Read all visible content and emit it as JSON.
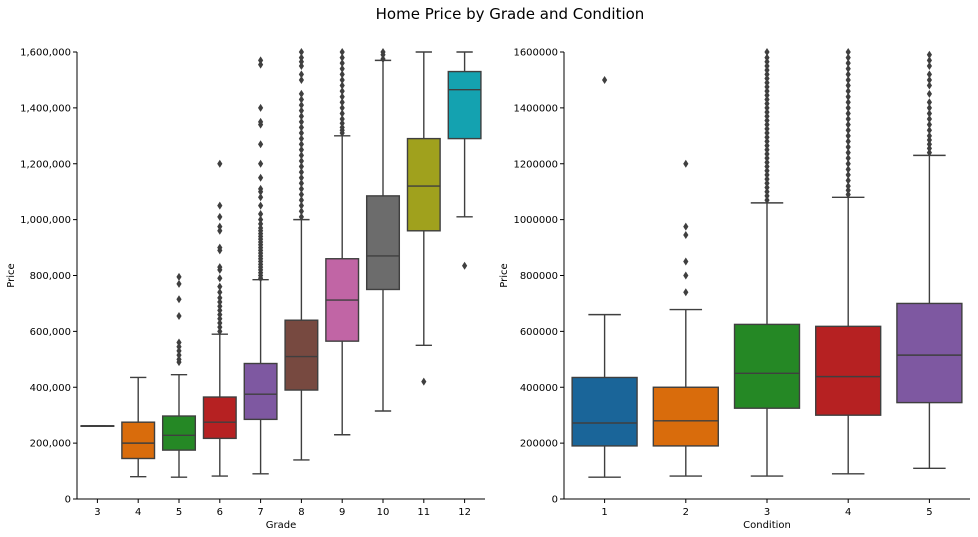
{
  "title": "Home Price by Grade and Condition",
  "chart_data": [
    {
      "type": "box",
      "xlabel": "Grade",
      "ylabel": "Price",
      "ylim": [
        0,
        1600000
      ],
      "y_ticks": [
        0,
        200000,
        400000,
        600000,
        800000,
        1000000,
        1200000,
        1400000,
        1600000
      ],
      "y_tick_labels": [
        "0",
        "200,000",
        "400,000",
        "600,000",
        "800,000",
        "1,000,000",
        "1,200,000",
        "1,400,000",
        "1,600,000"
      ],
      "grid": false,
      "categories": [
        "3",
        "4",
        "5",
        "6",
        "7",
        "8",
        "9",
        "10",
        "11",
        "12"
      ],
      "colors": [
        "#1f77b4",
        "#ff7f0e",
        "#2ca02c",
        "#d62728",
        "#9467bd",
        "#8c564b",
        "#e377c2",
        "#7f7f7f",
        "#bcbd22",
        "#17becf"
      ],
      "boxes": [
        {
          "category": "3",
          "whisker_low": 262000,
          "q1": 262000,
          "median": 262000,
          "q3": 262000,
          "whisker_high": 262000,
          "outliers": []
        },
        {
          "category": "4",
          "whisker_low": 80000,
          "q1": 145000,
          "median": 200000,
          "q3": 275000,
          "whisker_high": 435000,
          "outliers": []
        },
        {
          "category": "5",
          "whisker_low": 78000,
          "q1": 175000,
          "median": 228000,
          "q3": 297000,
          "whisker_high": 445000,
          "outliers": [
            490000,
            500000,
            515000,
            530000,
            545000,
            560000,
            655000,
            715000,
            770000,
            795000
          ]
        },
        {
          "category": "6",
          "whisker_low": 82000,
          "q1": 217000,
          "median": 275000,
          "q3": 365000,
          "whisker_high": 590000,
          "outliers": [
            600000,
            615000,
            630000,
            645000,
            660000,
            675000,
            690000,
            705000,
            720000,
            740000,
            760000,
            790000,
            820000,
            830000,
            890000,
            900000,
            960000,
            975000,
            1010000,
            1050000,
            1200000
          ]
        },
        {
          "category": "7",
          "whisker_low": 90000,
          "q1": 285000,
          "median": 375000,
          "q3": 485000,
          "whisker_high": 785000,
          "outliers": [
            790000,
            800000,
            810000,
            820000,
            830000,
            840000,
            850000,
            860000,
            870000,
            880000,
            890000,
            900000,
            910000,
            920000,
            930000,
            940000,
            950000,
            960000,
            970000,
            985000,
            1000000,
            1020000,
            1050000,
            1080000,
            1100000,
            1110000,
            1150000,
            1200000,
            1270000,
            1340000,
            1350000,
            1400000,
            1555000,
            1570000
          ]
        },
        {
          "category": "8",
          "whisker_low": 140000,
          "q1": 390000,
          "median": 510000,
          "q3": 640000,
          "whisker_high": 1000000,
          "outliers": [
            1010000,
            1030000,
            1050000,
            1070000,
            1090000,
            1110000,
            1130000,
            1150000,
            1170000,
            1190000,
            1210000,
            1230000,
            1250000,
            1270000,
            1290000,
            1310000,
            1330000,
            1350000,
            1370000,
            1390000,
            1410000,
            1430000,
            1450000,
            1500000,
            1520000,
            1550000,
            1565000,
            1580000,
            1600000
          ]
        },
        {
          "category": "9",
          "whisker_low": 230000,
          "q1": 565000,
          "median": 712000,
          "q3": 860000,
          "whisker_high": 1300000,
          "outliers": [
            1310000,
            1320000,
            1330000,
            1345000,
            1360000,
            1380000,
            1400000,
            1420000,
            1440000,
            1460000,
            1480000,
            1500000,
            1520000,
            1540000,
            1560000,
            1580000,
            1600000
          ]
        },
        {
          "category": "10",
          "whisker_low": 315000,
          "q1": 750000,
          "median": 870000,
          "q3": 1085000,
          "whisker_high": 1570000,
          "outliers": [
            1575000,
            1590000,
            1600000
          ]
        },
        {
          "category": "11",
          "whisker_low": 550000,
          "q1": 960000,
          "median": 1120000,
          "q3": 1290000,
          "whisker_high": 1600000,
          "outliers": [
            420000
          ]
        },
        {
          "category": "12",
          "whisker_low": 1010000,
          "q1": 1290000,
          "median": 1465000,
          "q3": 1530000,
          "whisker_high": 1600000,
          "outliers": [
            835000
          ]
        }
      ]
    },
    {
      "type": "box",
      "xlabel": "Condition",
      "ylabel": "Price",
      "ylim": [
        0,
        1600000
      ],
      "y_ticks": [
        0,
        200000,
        400000,
        600000,
        800000,
        1000000,
        1200000,
        1400000,
        1600000
      ],
      "y_tick_labels": [
        "0",
        "200000",
        "400000",
        "600000",
        "800000",
        "1000000",
        "1200000",
        "1400000",
        "1600000"
      ],
      "grid": false,
      "categories": [
        "1",
        "2",
        "3",
        "4",
        "5"
      ],
      "colors": [
        "#1f77b4",
        "#ff7f0e",
        "#2ca02c",
        "#d62728",
        "#9467bd"
      ],
      "boxes": [
        {
          "category": "1",
          "whisker_low": 78000,
          "q1": 190000,
          "median": 272000,
          "q3": 435000,
          "whisker_high": 660000,
          "outliers": [
            1500000
          ]
        },
        {
          "category": "2",
          "whisker_low": 82000,
          "q1": 190000,
          "median": 280000,
          "q3": 400000,
          "whisker_high": 678000,
          "outliers": [
            740000,
            800000,
            850000,
            945000,
            975000,
            1200000
          ]
        },
        {
          "category": "3",
          "whisker_low": 82000,
          "q1": 325000,
          "median": 450000,
          "q3": 625000,
          "whisker_high": 1060000,
          "outliers": [
            1070000,
            1085000,
            1100000,
            1115000,
            1130000,
            1145000,
            1160000,
            1175000,
            1190000,
            1205000,
            1220000,
            1235000,
            1250000,
            1265000,
            1280000,
            1295000,
            1310000,
            1325000,
            1340000,
            1355000,
            1370000,
            1385000,
            1400000,
            1415000,
            1430000,
            1445000,
            1460000,
            1475000,
            1490000,
            1505000,
            1520000,
            1535000,
            1550000,
            1565000,
            1580000,
            1600000
          ]
        },
        {
          "category": "4",
          "whisker_low": 90000,
          "q1": 300000,
          "median": 438000,
          "q3": 618000,
          "whisker_high": 1080000,
          "outliers": [
            1090000,
            1105000,
            1120000,
            1140000,
            1160000,
            1180000,
            1200000,
            1220000,
            1240000,
            1260000,
            1280000,
            1300000,
            1320000,
            1340000,
            1360000,
            1380000,
            1400000,
            1420000,
            1440000,
            1460000,
            1480000,
            1500000,
            1520000,
            1540000,
            1560000,
            1580000,
            1600000
          ]
        },
        {
          "category": "5",
          "whisker_low": 110000,
          "q1": 345000,
          "median": 515000,
          "q3": 700000,
          "whisker_high": 1230000,
          "outliers": [
            1240000,
            1255000,
            1270000,
            1285000,
            1300000,
            1320000,
            1340000,
            1360000,
            1380000,
            1400000,
            1420000,
            1450000,
            1480000,
            1500000,
            1520000,
            1550000,
            1570000,
            1590000
          ]
        }
      ]
    }
  ]
}
